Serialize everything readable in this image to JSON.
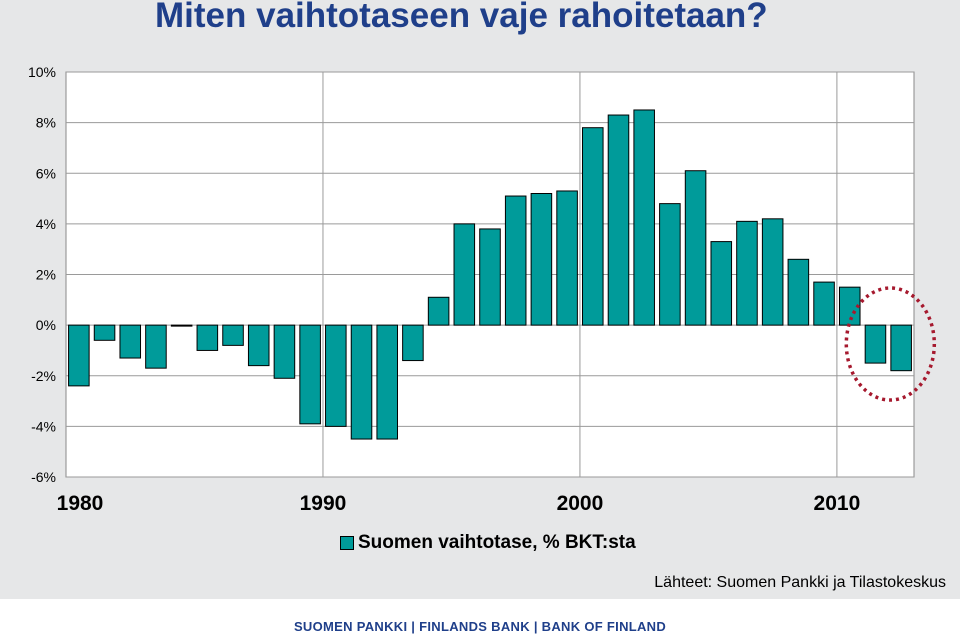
{
  "page": {
    "title": "Miten vaihtotaseen vaje rahoitetaan?",
    "source": "Lähteet: Suomen Pankki ja Tilastokeskus",
    "footer": "SUOMEN PANKKI | FINLANDS BANK | BANK OF FINLAND"
  },
  "colors": {
    "bar": "#009b9a",
    "bar_outline": "#000000",
    "title": "#1f3f8a",
    "highlight_circle": "#a6192e"
  },
  "chart_data": {
    "type": "bar",
    "title": "Miten vaihtotaseen vaje rahoitetaan?",
    "xlabel": "",
    "ylabel": "",
    "ylim": [
      -6,
      10
    ],
    "yticks": [
      10,
      8,
      6,
      4,
      2,
      0,
      -2,
      -4,
      -6
    ],
    "ytick_labels": [
      "10%",
      "8%",
      "6%",
      "4%",
      "2%",
      "0%",
      "-2%",
      "-4%",
      "-6%"
    ],
    "xtick_labels": [
      "1980",
      "1990",
      "2000",
      "2010"
    ],
    "grid": true,
    "legend_position": "bottom",
    "categories": [
      1980,
      1981,
      1982,
      1983,
      1984,
      1985,
      1986,
      1987,
      1988,
      1989,
      1990,
      1991,
      1992,
      1993,
      1994,
      1995,
      1996,
      1997,
      1998,
      1999,
      2000,
      2001,
      2002,
      2003,
      2004,
      2005,
      2006,
      2007,
      2008,
      2009,
      2010,
      2011,
      2012
    ],
    "series": [
      {
        "name": "Suomen vaihtotase, % BKT:sta",
        "values": [
          -2.4,
          -0.6,
          -1.3,
          -1.7,
          0.0,
          -1.0,
          -0.8,
          -1.6,
          -2.1,
          -3.9,
          -4.0,
          -4.5,
          -4.5,
          -1.4,
          1.1,
          4.0,
          3.8,
          5.1,
          5.2,
          5.3,
          7.8,
          8.3,
          8.5,
          4.8,
          6.1,
          3.3,
          4.1,
          4.2,
          2.6,
          1.7,
          1.5,
          -1.5,
          -1.8
        ]
      }
    ],
    "annotation": "dotted circle highlighting the last two years"
  }
}
